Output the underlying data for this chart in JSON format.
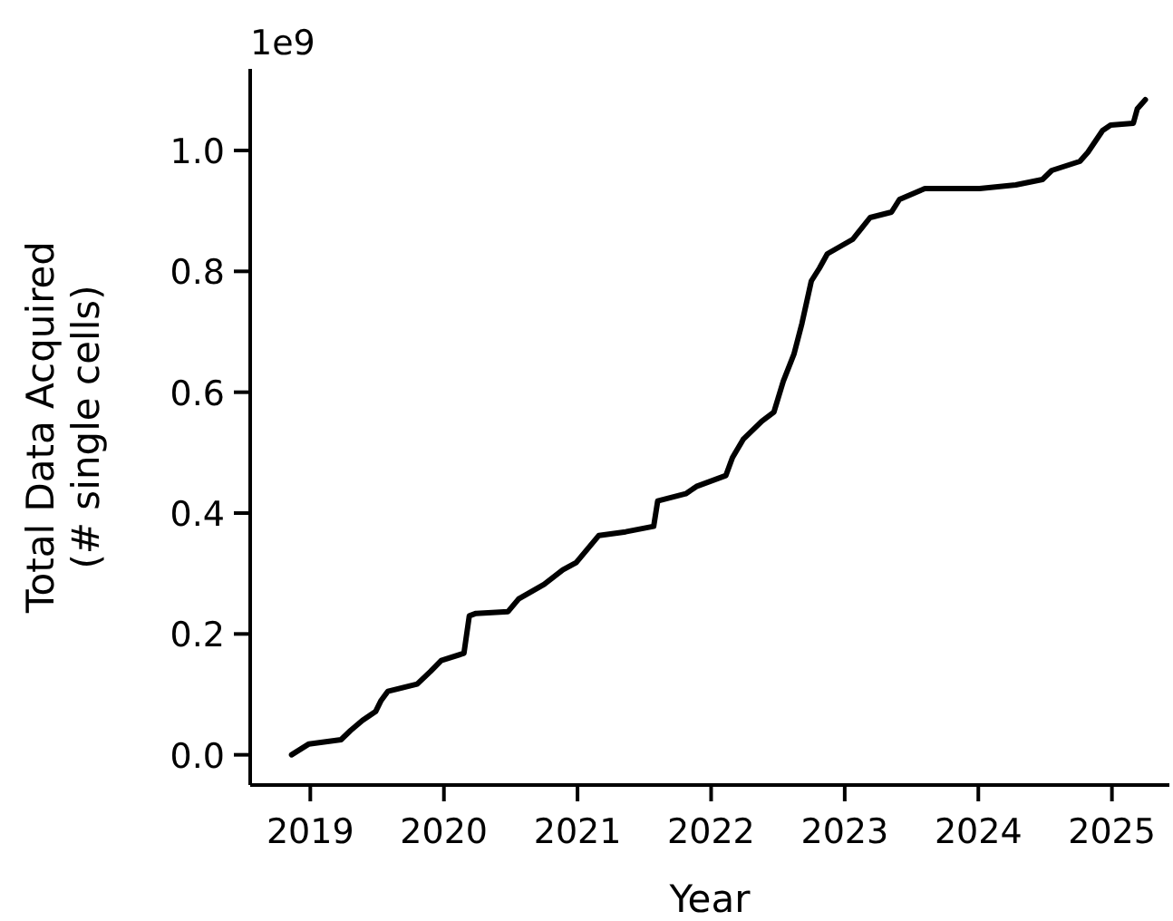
{
  "chart_data": {
    "type": "line",
    "xlabel": "Year",
    "ylabel": "Total Data Acquired\n(# single cells)",
    "annotations": [
      "1e9"
    ],
    "xlim": [
      2018.55,
      2025.43
    ],
    "xticks": [
      2019,
      2020,
      2021,
      2022,
      2023,
      2024,
      2025
    ],
    "ylim": [
      -0.05,
      1.135
    ],
    "yticks": [
      {
        "value": 0,
        "label": "0.0"
      },
      {
        "value": 0.2,
        "label": "0.2"
      },
      {
        "value": 0.4,
        "label": "0.4"
      },
      {
        "value": 0.6,
        "label": "0.6"
      },
      {
        "value": 0.8,
        "label": "0.8"
      },
      {
        "value": 1,
        "label": "1.0"
      }
    ],
    "series": [
      {
        "color": "#000000",
        "x": [
          2018.86,
          2018.99,
          2019.23,
          2019.3,
          2019.39,
          2019.49,
          2019.53,
          2019.58,
          2019.8,
          2019.9,
          2019.98,
          2020.15,
          2020.19,
          2020.24,
          2020.48,
          2020.56,
          2020.75,
          2020.89,
          2020.99,
          2021.16,
          2021.36,
          2021.57,
          2021.6,
          2021.81,
          2021.89,
          2022.11,
          2022.16,
          2022.24,
          2022.38,
          2022.47,
          2022.54,
          2022.62,
          2022.68,
          2022.75,
          2022.81,
          2022.87,
          2023.06,
          2023.19,
          2023.35,
          2023.41,
          2023.6,
          2024.01,
          2024.28,
          2024.48,
          2024.55,
          2024.76,
          2024.82,
          2024.93,
          2024.99,
          2025.16,
          2025.19,
          2025.25
        ],
        "values": [
          0.0,
          0.018,
          0.025,
          0.04,
          0.057,
          0.072,
          0.09,
          0.105,
          0.117,
          0.138,
          0.156,
          0.168,
          0.23,
          0.234,
          0.237,
          0.258,
          0.282,
          0.306,
          0.318,
          0.363,
          0.369,
          0.378,
          0.42,
          0.432,
          0.444,
          0.462,
          0.492,
          0.522,
          0.552,
          0.567,
          0.618,
          0.663,
          0.714,
          0.784,
          0.805,
          0.829,
          0.853,
          0.889,
          0.898,
          0.919,
          0.937,
          0.937,
          0.943,
          0.952,
          0.967,
          0.982,
          0.997,
          1.033,
          1.042,
          1.045,
          1.069,
          1.084
        ]
      }
    ],
    "grid": false
  }
}
